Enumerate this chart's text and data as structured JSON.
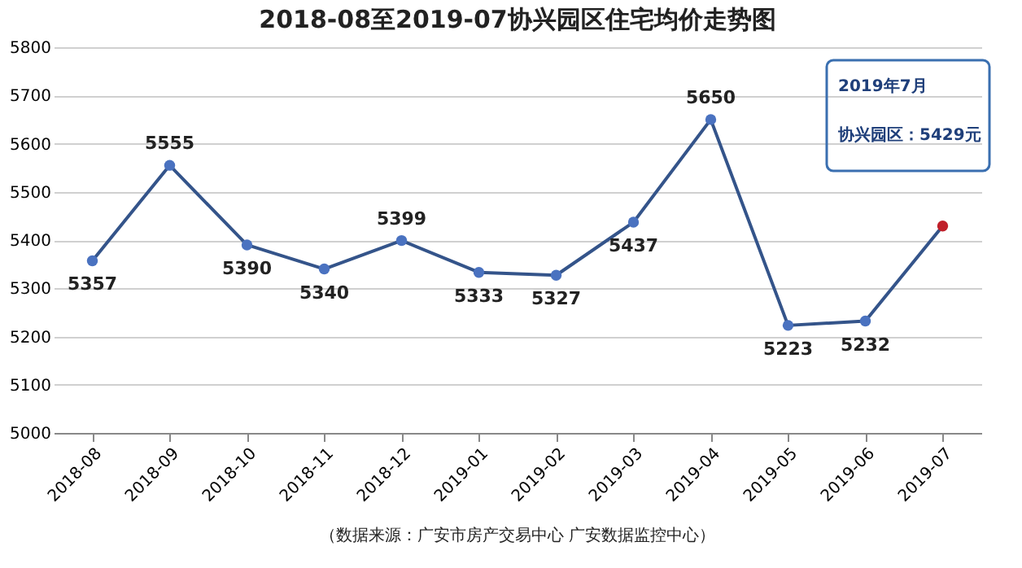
{
  "chart_data": {
    "type": "line",
    "title": "2018-08至2019-07协兴园区住宅均价走势图",
    "categories": [
      "2018-08",
      "2018-09",
      "2018-10",
      "2018-11",
      "2018-12",
      "2019-01",
      "2019-02",
      "2019-03",
      "2019-04",
      "2019-05",
      "2019-06",
      "2019-07"
    ],
    "series": [
      {
        "color": "#34548a",
        "colors": [
          "#4a72c0",
          "#4a72c0",
          "#4a72c0",
          "#4a72c0",
          "#4a72c0",
          "#4a72c0",
          "#4a72c0",
          "#4a72c0",
          "#4a72c0",
          "#4a72c0",
          "#4a72c0",
          "#c0202a"
        ],
        "values": [
          5357,
          5555,
          5390,
          5340,
          5399,
          5333,
          5327,
          5437,
          5650,
          5223,
          5232,
          5429
        ],
        "value_labels": [
          "5357",
          "5555",
          "5390",
          "5340",
          "5399",
          "5333",
          "5327",
          "5437",
          "5650",
          "5223",
          "5232",
          null
        ]
      }
    ],
    "ylim": [
      5000,
      5800
    ],
    "yticks": [
      5000,
      5100,
      5200,
      5300,
      5400,
      5500,
      5600,
      5700,
      5800
    ],
    "grid": "y",
    "marker": "circle",
    "line_style": "solid",
    "annotations": [
      "2019年7月",
      "协兴园区：5429元",
      "（数据来源：广安市房产交易中心 广安数据监控中心）"
    ]
  }
}
